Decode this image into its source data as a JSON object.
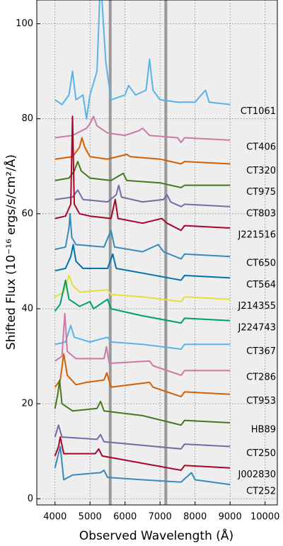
{
  "chart_data": {
    "type": "line",
    "x_label": "Observed Wavelength (Å)",
    "y_label": "Shifted Flux (10⁻¹⁶ ergs/s/cm²/Å)",
    "xlim": [
      3480,
      10350
    ],
    "ylim": [
      -1.3,
      105
    ],
    "xticks": [
      4000,
      5000,
      6000,
      7000,
      8000,
      9000,
      10000
    ],
    "yticks": [
      0,
      20,
      40,
      60,
      80,
      100
    ],
    "grid": true,
    "reference_lines": [
      5577,
      7165
    ],
    "series": [
      {
        "name": "CT1061",
        "color": "#56B4E9",
        "x": [
          4000,
          4200,
          4400,
          4500,
          4600,
          4800,
          4900,
          5000,
          5200,
          5300,
          5350,
          5450,
          5600,
          6000,
          6100,
          6300,
          6600,
          6700,
          6800,
          7000,
          7500,
          8000,
          8300,
          8400,
          9000
        ],
        "values": [
          84,
          83,
          85,
          90,
          84,
          85,
          80,
          85,
          90,
          110,
          104,
          92,
          84,
          85,
          87,
          85,
          86,
          92.5,
          86,
          84,
          83.5,
          83.5,
          86,
          83.5,
          83
        ]
      },
      {
        "name": "CT406",
        "color": "#CC79A7",
        "x": [
          4000,
          4500,
          4900,
          5000,
          5100,
          5200,
          5500,
          6000,
          6400,
          6500,
          6700,
          7500,
          7600,
          7700,
          9000
        ],
        "values": [
          76,
          76.5,
          78,
          79,
          80.5,
          78.5,
          77,
          76.5,
          77.5,
          78,
          76.5,
          76,
          75,
          76,
          75.5
        ]
      },
      {
        "name": "CT320",
        "color": "#D55E00",
        "x": [
          4000,
          4500,
          4700,
          4770,
          4850,
          5000,
          5500,
          6050,
          6150,
          7000,
          7600,
          7700,
          9000
        ],
        "values": [
          71.5,
          72,
          74,
          76,
          74,
          72,
          71.5,
          72.5,
          72,
          71.5,
          70.5,
          71,
          70.5
        ]
      },
      {
        "name": "CT975",
        "color": "#467821",
        "x": [
          4000,
          4400,
          4550,
          4650,
          4750,
          5000,
          5600,
          5950,
          6050,
          7000,
          7600,
          7700,
          9000
        ],
        "values": [
          67,
          67.5,
          69,
          71,
          69,
          67.5,
          67,
          68.5,
          67,
          66.5,
          65.5,
          66,
          66
        ]
      },
      {
        "name": "CT803",
        "color": "#7A68A6",
        "x": [
          4000,
          4500,
          4650,
          4800,
          5500,
          5750,
          5820,
          5900,
          6500,
          7100,
          7200,
          7300,
          7600,
          7700,
          9000
        ],
        "values": [
          63,
          63.5,
          65,
          63,
          62.5,
          64,
          66,
          63.5,
          62.5,
          63,
          64,
          62.5,
          61.5,
          62,
          61.5
        ]
      },
      {
        "name": "J221516",
        "color": "#A60628",
        "x": [
          4000,
          4300,
          4450,
          4500,
          4550,
          4700,
          5000,
          5600,
          5720,
          5800,
          6500,
          7050,
          7200,
          7600,
          7700,
          9000
        ],
        "values": [
          59,
          59.5,
          62,
          80.5,
          62,
          60,
          59.5,
          59,
          63,
          59,
          58,
          59,
          58,
          56.5,
          57.5,
          57
        ]
      },
      {
        "name": "CT650",
        "color": "#348ABD",
        "x": [
          4000,
          4300,
          4400,
          4430,
          4480,
          4600,
          5400,
          5600,
          5700,
          6500,
          6950,
          7100,
          7600,
          7700,
          9000
        ],
        "values": [
          52.5,
          53,
          57,
          60,
          55,
          53.5,
          53,
          56.5,
          53,
          52,
          53.5,
          52,
          50.5,
          51.5,
          51
        ]
      },
      {
        "name": "CT564",
        "color": "#0072B2",
        "x": [
          4000,
          4300,
          4450,
          4520,
          4600,
          4800,
          5500,
          5650,
          5750,
          6500,
          7600,
          7700,
          9000
        ],
        "values": [
          48,
          48.5,
          51,
          53.5,
          50,
          48.5,
          48.5,
          51.5,
          48.5,
          47.5,
          46,
          47,
          46.5
        ]
      },
      {
        "name": "J214355",
        "color": "#E8E030",
        "x": [
          4000,
          4250,
          4400,
          4500,
          4700,
          5500,
          5600,
          6500,
          7600,
          7700,
          9000
        ],
        "values": [
          42.5,
          43.5,
          47,
          45,
          43.5,
          44,
          43,
          42.5,
          41.5,
          42.5,
          42
        ]
      },
      {
        "name": "J224743",
        "color": "#009E73",
        "x": [
          4000,
          4150,
          4300,
          4400,
          4700,
          5000,
          5100,
          5500,
          5600,
          6500,
          7600,
          7700,
          9000
        ],
        "values": [
          39.5,
          41,
          46,
          42,
          40.5,
          41.5,
          40,
          42,
          40,
          38.5,
          37,
          38,
          37.5
        ]
      },
      {
        "name": "CT367",
        "color": "#56B4E9",
        "x": [
          4000,
          4300,
          4450,
          4550,
          5000,
          5500,
          5600,
          6500,
          7600,
          7700,
          9000
        ],
        "values": [
          32.5,
          33,
          36.5,
          34,
          33,
          34,
          33,
          32.5,
          31.5,
          32.5,
          32.5
        ]
      },
      {
        "name": "CT286",
        "color": "#CC79A7",
        "x": [
          4000,
          4200,
          4280,
          4350,
          4600,
          5400,
          5470,
          5550,
          6700,
          6800,
          7600,
          7700,
          9000
        ],
        "values": [
          29,
          30,
          39,
          31,
          29.5,
          29.5,
          32,
          28.5,
          29,
          28,
          26,
          27,
          27
        ]
      },
      {
        "name": "CT953",
        "color": "#D55E00",
        "x": [
          4000,
          4150,
          4250,
          4350,
          4600,
          4900,
          5400,
          5480,
          5600,
          6700,
          6800,
          7600,
          7700,
          9000
        ],
        "values": [
          23.5,
          25,
          30.5,
          26,
          24,
          24.5,
          25,
          26.5,
          23.5,
          24.5,
          23.5,
          21.5,
          22.5,
          22
        ]
      },
      {
        "name": "HB89",
        "color": "#467821",
        "x": [
          4000,
          4080,
          4130,
          4200,
          4500,
          5200,
          5300,
          5400,
          6500,
          7600,
          7700,
          9000
        ],
        "values": [
          19,
          22,
          25,
          20,
          18.5,
          19,
          20.5,
          18.5,
          17.5,
          15.5,
          16.5,
          16
        ]
      },
      {
        "name": "CT250",
        "color": "#7A68A6",
        "x": [
          4000,
          4100,
          4200,
          5200,
          5300,
          5400,
          7600,
          7700,
          9000
        ],
        "values": [
          13,
          15.5,
          13,
          12.5,
          13.5,
          12,
          10.5,
          11.5,
          11
        ]
      },
      {
        "name": "J002830",
        "color": "#A60628",
        "x": [
          4000,
          4100,
          4150,
          4250,
          5150,
          5250,
          5350,
          7600,
          7700,
          9000
        ],
        "values": [
          9,
          11,
          13,
          9.5,
          9.5,
          10.5,
          9,
          6,
          7,
          6.5
        ]
      },
      {
        "name": "CT252",
        "color": "#348ABD",
        "x": [
          4000,
          4150,
          4250,
          4500,
          5300,
          5400,
          5500,
          6500,
          7600,
          7900,
          8000,
          9000
        ],
        "values": [
          6.5,
          11,
          4,
          5,
          5.5,
          6,
          4.5,
          4,
          3.5,
          5.5,
          4,
          3
        ]
      }
    ]
  }
}
